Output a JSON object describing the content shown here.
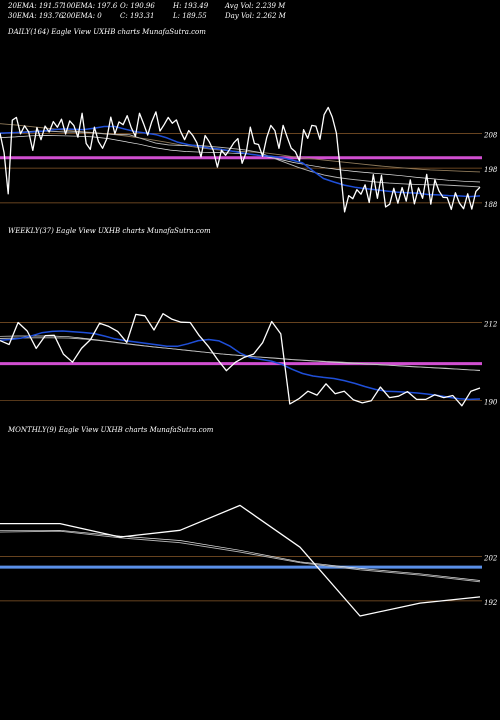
{
  "header": {
    "ema20": "20EMA: 191.57",
    "ema100": "100EMA: 197.6",
    "open": "O: 190.96",
    "high": "H: 193.49",
    "avg_vol": "Avg Vol: 2.239 M",
    "ema30": "30EMA: 193.76",
    "ema200": "200EMA: 0",
    "close": "C: 193.31",
    "low": "L: 189.55",
    "day_vol": "Day Vol: 2.262 M"
  },
  "colors": {
    "background": "#000000",
    "price": "#ffffff",
    "ema_fast": "#1f4fd8",
    "ema_slow": "#b8b8b8",
    "ema_slow_2": "#8f7a5a",
    "support_magenta": "#d14fd1",
    "support_blue": "#5a8fe8",
    "level_line": "#8a5a2a"
  },
  "chart_data": [
    {
      "type": "line",
      "title": "DAILY(164) Eagle  View  UXHB charts MunafaSutra.com",
      "ylim": [
        184.5,
        220.5
      ],
      "yticks": [
        "208",
        "198",
        "188"
      ],
      "levels": [
        208,
        198,
        188
      ],
      "band": {
        "value": 201,
        "color": "#d14fd1"
      },
      "series": [
        {
          "role": "price",
          "values": [
            208.1,
            202.4,
            190.6,
            211.8,
            212.6,
            207.9,
            210.2,
            208.4,
            203.1,
            209.7,
            206.2,
            210.1,
            208.4,
            211.4,
            209.8,
            212.1,
            207.8,
            211.6,
            210.3,
            206.9,
            213.8,
            205.1,
            203.4,
            209.8,
            205.6,
            203.7,
            206.4,
            212.7,
            207.9,
            211.3,
            210.5,
            213.1,
            209.6,
            207.2,
            213.8,
            210.8,
            207.5,
            211.4,
            214.2,
            208.7,
            210.5,
            212.6,
            210.9,
            211.9,
            208.6,
            206.2,
            208.8,
            207.4,
            205.3,
            201.2,
            207.4,
            205.6,
            203.1,
            198.3,
            203.2,
            201.7,
            203.4,
            205.3,
            206.5,
            199.4,
            202.5,
            209.8,
            205.1,
            204.8,
            201.4,
            206.8,
            210.3,
            208.8,
            203.7,
            210.3,
            206.9,
            203.7,
            202.7,
            200.1,
            209.1,
            206.6,
            210.3,
            210.1,
            206.3,
            213.4,
            215.5,
            212.7,
            208.1,
            197.1,
            185.4,
            190.1,
            189.2,
            191.8,
            190.5,
            193.2,
            188.1,
            196.1,
            189.3,
            195.9,
            186.8,
            187.6,
            192.2,
            187.9,
            192.4,
            188.5,
            194.6,
            187.7,
            192.3,
            189.3,
            196.2,
            187.6,
            194.6,
            191.4,
            189.6,
            189.5,
            186.1,
            190.9,
            187.9,
            186.3,
            190.6,
            186.2,
            191.3,
            192.5
          ]
        },
        {
          "role": "ema-fast",
          "values": [
            208.1,
            208.2,
            208.3,
            208.4,
            208.6,
            209.0,
            209.3,
            209.2,
            209.1,
            209.5,
            210.0,
            210.0,
            209.2,
            208.5,
            208.1,
            207.6,
            206.7,
            205.5,
            204.8,
            204.3,
            203.8,
            203.5,
            203.0,
            202.5,
            202.0,
            201.6,
            201.4,
            201.0,
            200.3,
            199.5,
            197.2,
            195.0,
            194.0,
            193.1,
            192.5,
            192.1,
            191.8,
            191.4,
            191.1,
            190.9,
            190.8,
            190.4,
            190.3,
            190.1,
            190.0,
            189.8,
            190.0
          ]
        },
        {
          "role": "ema-slow",
          "values": [
            208.0,
            208.2,
            208.5,
            208.7,
            208.6,
            208.4,
            208.4,
            208.2,
            207.9,
            207.7,
            207.6,
            206.4,
            205.2,
            204.7,
            204.5,
            204.6,
            204.3,
            204.0,
            203.6,
            203.2,
            202.5,
            201.0,
            199.6,
            198.2,
            197.0,
            196.0,
            195.3,
            194.8,
            194.4,
            194.0,
            193.7,
            193.5,
            193.3,
            193.2,
            193.2,
            193.0,
            192.8,
            192.6
          ]
        },
        {
          "role": "ema-slow-2",
          "values": [
            206.8,
            207.0,
            207.3,
            207.4,
            207.3,
            207.2,
            207.0,
            206.5,
            205.7,
            204.9,
            203.9,
            203.2,
            202.8,
            202.6,
            202.5,
            202.3,
            202.1,
            201.5,
            200.6,
            199.6,
            198.8,
            198.1,
            197.5,
            197.0,
            196.6,
            196.2,
            195.8,
            195.3,
            194.9,
            194.5,
            194.2,
            194.0
          ]
        },
        {
          "role": "ema-200",
          "values": [
            210.8,
            210.4,
            209.9,
            209.4,
            208.9,
            208.5,
            208.1,
            207.6,
            207.0,
            206.3,
            205.5,
            204.6,
            203.9,
            203.3,
            202.9,
            202.7,
            202.4,
            201.8,
            201.1,
            200.6,
            200.1,
            199.6,
            199.1,
            198.6,
            198.2,
            197.8,
            197.5,
            197.3,
            197.1,
            196.9
          ]
        }
      ]
    },
    {
      "type": "line",
      "title": "WEEKLY(37) Eagle  View  UXHB charts MunafaSutra.com",
      "ylim": [
        187.3,
        222.6
      ],
      "yticks": [
        "212",
        "190"
      ],
      "levels": [
        212,
        190
      ],
      "band": {
        "value": 200.4,
        "color": "#d14fd1"
      },
      "series": [
        {
          "role": "price",
          "values": [
            206.9,
            205.8,
            212,
            209.6,
            204.7,
            208.3,
            208.4,
            203.1,
            200.8,
            204.7,
            207.2,
            211.8,
            210.9,
            209.5,
            206.4,
            214.3,
            213.9,
            209.9,
            214.5,
            212.9,
            212.1,
            212,
            208.3,
            205.3,
            201.6,
            198.4,
            200.8,
            202.2,
            203.1,
            206.3,
            212.3,
            208.8,
            189,
            190.5,
            192.6,
            191.5,
            194.7,
            191.9,
            192.6,
            190.2,
            189.3,
            189.9,
            193.8,
            190.8,
            191.2,
            192.5,
            190.3,
            190.3,
            191.6,
            190.8,
            191.4,
            188.5,
            192.6,
            193.5
          ]
        },
        {
          "role": "ema-fast",
          "values": [
            207,
            207.2,
            207.6,
            208.2,
            209.1,
            209.5,
            209.6,
            209.4,
            209.2,
            208.9,
            208.2,
            207.4,
            206.9,
            206.5,
            206.1,
            205.7,
            205.3,
            205.3,
            206,
            206.9,
            207.2,
            206.8,
            205.4,
            203.4,
            202.1,
            201.6,
            201.1,
            200.2,
            198.8,
            197.6,
            196.9,
            196.5,
            196.2,
            195.6,
            194.8,
            193.9,
            193.1,
            192.6,
            192.5,
            192.3,
            192.1,
            191.8,
            191.4,
            190.9,
            190.5,
            190.3,
            190.4
          ]
        },
        {
          "role": "ema-slow",
          "values": [
            207.5,
            207.6,
            207.7,
            207.7,
            207.6,
            207.3,
            206.8,
            206.2,
            205.6,
            205.1,
            204.6,
            204.1,
            203.6,
            203.1,
            202.7,
            202.3,
            202,
            201.6,
            201.3,
            201,
            200.8,
            200.5,
            200.2,
            199.9,
            199.6,
            199.3,
            199.1,
            198.7,
            198.5
          ]
        },
        {
          "role": "ema-slow-2",
          "values": [
            208.1,
            208.2,
            208.2,
            208.2,
            208,
            207.5,
            206.9,
            206.3,
            205.7,
            205.1,
            204.6,
            204.1,
            203.6,
            203.1,
            202.7,
            202.3,
            201.9,
            201.5,
            201.2,
            200.9,
            200.6,
            200.4,
            200.1,
            199.8,
            199.5,
            199.3,
            199,
            198.8,
            198.4
          ]
        }
      ]
    },
    {
      "type": "line",
      "title": "MONTHLY(9) Eagle  View  UXHB charts MunafaSutra.com",
      "ylim": [
        187.7,
        218.1
      ],
      "yticks": [
        "202",
        "192"
      ],
      "levels": [
        202,
        192
      ],
      "band": {
        "value": 199.6,
        "color": "#5a8fe8"
      },
      "series": [
        {
          "role": "price",
          "values": [
            209.4,
            209.4,
            206.4,
            207.9,
            213.5,
            204.1,
            188.6,
            191.5,
            192.9
          ]
        },
        {
          "role": "ema-slow",
          "values": [
            207.5,
            207.7,
            206.2,
            205.1,
            203,
            200.6,
            199,
            197.8,
            196.3
          ]
        },
        {
          "role": "ema-slow-2",
          "values": [
            207.8,
            207.9,
            206.6,
            205.6,
            203.4,
            200.8,
            199.3,
            198.1,
            196.6
          ]
        }
      ]
    }
  ]
}
